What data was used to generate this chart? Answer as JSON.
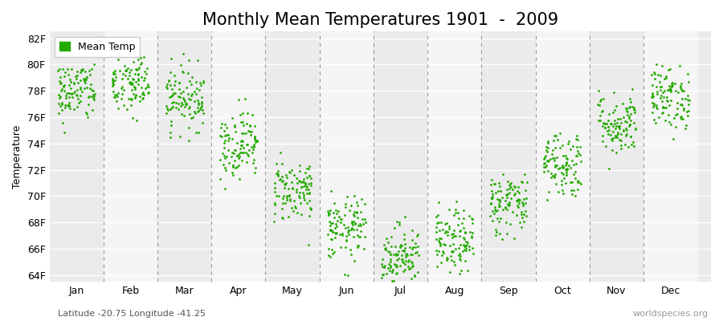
{
  "title": "Monthly Mean Temperatures 1901  -  2009",
  "ylabel": "Temperature",
  "dot_color": "#22aa00",
  "plot_bg_even": "#ebebeb",
  "plot_bg_odd": "#f5f5f5",
  "fig_bg": "#ffffff",
  "ylim": [
    63.5,
    82.5
  ],
  "yticks": [
    64,
    66,
    68,
    70,
    72,
    74,
    76,
    78,
    80,
    82
  ],
  "ytick_labels": [
    "64F",
    "66F",
    "68F",
    "70F",
    "72F",
    "74F",
    "76F",
    "78F",
    "80F",
    "82F"
  ],
  "months": [
    "Jan",
    "Feb",
    "Mar",
    "Apr",
    "May",
    "Jun",
    "Jul",
    "Aug",
    "Sep",
    "Oct",
    "Nov",
    "Dec"
  ],
  "monthly_means": [
    78.0,
    78.5,
    77.5,
    74.0,
    70.5,
    67.5,
    65.5,
    66.5,
    69.5,
    72.5,
    75.5,
    77.5
  ],
  "monthly_stds": [
    1.2,
    1.3,
    1.2,
    1.3,
    1.2,
    1.2,
    1.2,
    1.2,
    1.2,
    1.3,
    1.2,
    1.2
  ],
  "n_years": 109,
  "legend_label": "Mean Temp",
  "subtitle": "Latitude -20.75 Longitude -41.25",
  "watermark": "worldspecies.org",
  "title_fontsize": 15,
  "axis_fontsize": 9,
  "label_fontsize": 9,
  "dot_size": 4,
  "xlim": [
    0.5,
    12.75
  ]
}
